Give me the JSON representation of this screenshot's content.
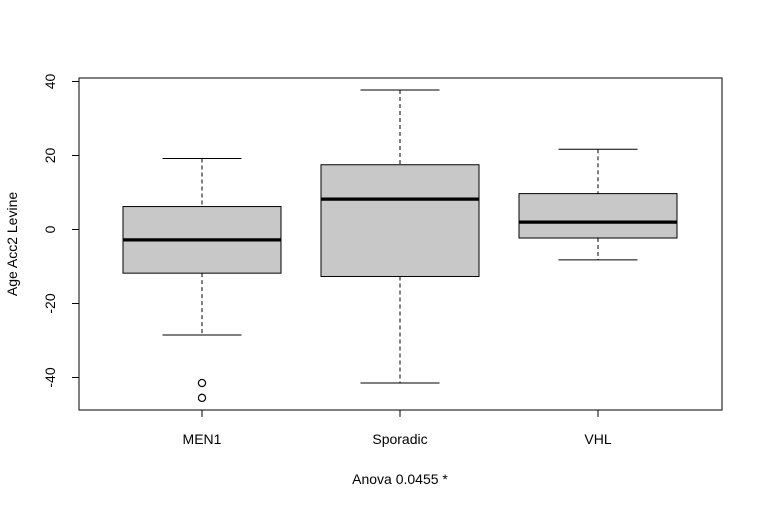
{
  "chart_data": {
    "type": "box",
    "xlabel": "Anova 0.0455 *",
    "ylabel": "Age Acc2 Levine",
    "ylim": [
      -48.5,
      41
    ],
    "yticks": [
      40,
      20,
      0,
      -20,
      -40
    ],
    "ytick_labels": [
      "40",
      "20",
      "0",
      "-20",
      "-40"
    ],
    "categories": [
      "MEN1",
      "Sporadic",
      "VHL"
    ],
    "boxes": [
      {
        "name": "MEN1",
        "whisker_low": -28.5,
        "q1": -11.8,
        "median": -2.8,
        "q3": 6.2,
        "whisker_high": 19.2,
        "outliers": [
          -41.5,
          -45.5
        ]
      },
      {
        "name": "Sporadic",
        "whisker_low": -41.5,
        "q1": -12.7,
        "median": 8.2,
        "q3": 17.5,
        "whisker_high": 37.7,
        "outliers": []
      },
      {
        "name": "VHL",
        "whisker_low": -8.2,
        "q1": -2.3,
        "median": 2.0,
        "q3": 9.7,
        "whisker_high": 21.7,
        "outliers": []
      }
    ],
    "colors": {
      "box_fill": "#c8c8c8",
      "stroke": "#000000",
      "background": "#ffffff"
    },
    "grid": false,
    "legend": "none"
  }
}
